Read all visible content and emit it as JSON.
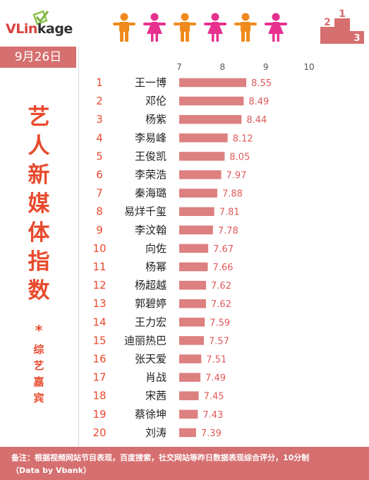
{
  "brand": {
    "logo_text_v": "VL",
    "logo_text_in": "in",
    "logo_text_rest": "kage"
  },
  "date": "9月26日",
  "title": "艺人新媒体指数",
  "title_separator": "*",
  "subtitle": "综艺嘉宾",
  "podium_numbers": [
    "2",
    "1",
    "3"
  ],
  "footer": {
    "line1": "备注：根据视频网站节目表现，百度搜索，社交网站等昨日数据表现综合评分，10分制",
    "line2": "（Data by Vbank）"
  },
  "colors": {
    "accent": "#d66f6f",
    "bar": "#dd8080",
    "title": "#e84a2d",
    "rank": "#e84a2d",
    "person_orange": "#f08a1c",
    "person_pink": "#e8308e"
  },
  "chart_data": {
    "type": "bar",
    "orientation": "horizontal",
    "xlim": [
      7,
      10
    ],
    "xticks": [
      7,
      8,
      9,
      10
    ],
    "grid": false,
    "ranks": [
      1,
      2,
      3,
      4,
      5,
      6,
      7,
      8,
      9,
      10,
      11,
      12,
      13,
      14,
      15,
      16,
      17,
      18,
      19,
      20
    ],
    "categories": [
      "王一博",
      "邓伦",
      "杨紫",
      "李易峰",
      "王俊凯",
      "李荣浩",
      "秦海璐",
      "易烊千玺",
      "李汶翰",
      "向佐",
      "杨幂",
      "杨超越",
      "郭碧婷",
      "王力宏",
      "迪丽热巴",
      "张天爱",
      "肖战",
      "宋茜",
      "蔡徐坤",
      "刘涛"
    ],
    "values": [
      8.55,
      8.49,
      8.44,
      8.12,
      8.05,
      7.97,
      7.88,
      7.81,
      7.78,
      7.67,
      7.66,
      7.62,
      7.62,
      7.59,
      7.57,
      7.51,
      7.49,
      7.45,
      7.43,
      7.39
    ]
  }
}
